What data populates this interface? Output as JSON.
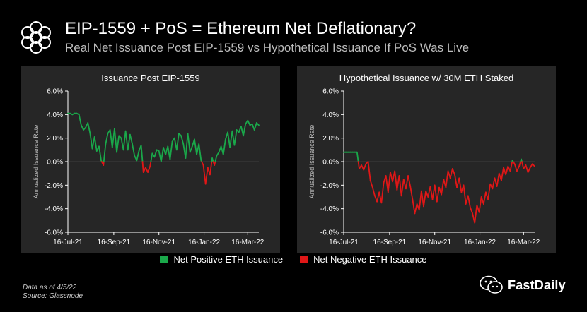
{
  "header": {
    "title": "EIP-1559 + PoS = Ethereum Net Deflationary?",
    "subtitle": "Real Net Issuance Post EIP-1559 vs Hypothetical Issuance If PoS Was Live"
  },
  "legend": {
    "positive": "Net Positive ETH Issuance",
    "negative": "Net Negative ETH Issuance"
  },
  "colors": {
    "positive": "#1aa84a",
    "negative": "#e01717",
    "background": "#000000",
    "panel": "#262626",
    "axis": "#ffffff"
  },
  "footnotes": {
    "date": "Data as of 4/5/22",
    "source": "Source: Glassnode"
  },
  "watermark": {
    "brand": "FastDaily"
  },
  "chart_data": [
    {
      "type": "line",
      "title": "Issuance Post EIP-1559",
      "xlabel": "",
      "ylabel": "Annualized Issuance Rate",
      "ylim": [
        -6,
        6
      ],
      "y_ticks": [
        "6.0%",
        "4.0%",
        "2.0%",
        "0.0%",
        "-2.0%",
        "-4.0%",
        "-6.0%"
      ],
      "y_tick_values": [
        6,
        4,
        2,
        0,
        -2,
        -4,
        -6
      ],
      "x_range": [
        0,
        258
      ],
      "x_ticks": [
        "16-Jul-21",
        "16-Sep-21",
        "16-Nov-21",
        "16-Jan-22",
        "16-Mar-22"
      ],
      "x_tick_values": [
        0,
        62,
        123,
        184,
        243
      ],
      "series": [
        {
          "name": "Net Issuance",
          "x": [
            0,
            3,
            6,
            9,
            12,
            15,
            18,
            21,
            24,
            27,
            30,
            33,
            36,
            39,
            42,
            45,
            48,
            51,
            54,
            57,
            60,
            63,
            66,
            69,
            72,
            75,
            78,
            81,
            84,
            87,
            90,
            93,
            96,
            99,
            102,
            105,
            108,
            111,
            114,
            117,
            120,
            123,
            126,
            129,
            132,
            135,
            138,
            141,
            144,
            147,
            150,
            153,
            156,
            159,
            162,
            165,
            168,
            171,
            174,
            177,
            180,
            183,
            186,
            189,
            192,
            195,
            198,
            201,
            204,
            207,
            210,
            213,
            216,
            219,
            222,
            225,
            228,
            231,
            234,
            237,
            240,
            243,
            246,
            249,
            252,
            255,
            258
          ],
          "values": [
            4.1,
            4.1,
            4.0,
            4.1,
            4.1,
            4.0,
            3.1,
            2.7,
            2.9,
            3.3,
            2.4,
            1.1,
            2.1,
            0.9,
            1.3,
            0.1,
            -0.3,
            1.5,
            2.4,
            2.7,
            1.2,
            2.8,
            0.8,
            2.2,
            2.0,
            1.0,
            2.6,
            1.0,
            2.3,
            1.5,
            0.5,
            0.1,
            0.9,
            1.4,
            -0.9,
            -0.5,
            -0.9,
            -0.4,
            0.7,
            0.4,
            1.0,
            0.9,
            0.0,
            1.2,
            0.6,
            1.3,
            0.2,
            1.7,
            2.0,
            1.0,
            2.4,
            2.2,
            1.5,
            0.3,
            2.4,
            0.8,
            1.3,
            1.9,
            0.6,
            1.5,
            0.1,
            -0.3,
            -1.9,
            -0.5,
            -1.1,
            0.3,
            -0.3,
            0.5,
            0.8,
            1.3,
            0.6,
            1.9,
            2.5,
            1.2,
            2.6,
            1.4,
            2.7,
            2.5,
            3.0,
            2.2,
            3.2,
            3.5,
            3.1,
            3.2,
            2.7,
            3.3,
            3.1
          ]
        }
      ]
    },
    {
      "type": "line",
      "title": "Hypothetical Issuance w/ 30M ETH Staked",
      "xlabel": "",
      "ylabel": "Annualized Issuance Rate",
      "ylim": [
        -6,
        6
      ],
      "y_ticks": [
        "6.0%",
        "4.0%",
        "2.0%",
        "0.0%",
        "-2.0%",
        "-4.0%",
        "-6.0%"
      ],
      "y_tick_values": [
        6,
        4,
        2,
        0,
        -2,
        -4,
        -6
      ],
      "x_range": [
        0,
        258
      ],
      "x_ticks": [
        "16-Jul-21",
        "16-Sep-21",
        "16-Nov-21",
        "16-Jan-22",
        "16-Mar-22"
      ],
      "x_tick_values": [
        0,
        62,
        123,
        184,
        243
      ],
      "series": [
        {
          "name": "Hypothetical Net Issuance",
          "x": [
            0,
            3,
            6,
            9,
            12,
            15,
            18,
            21,
            24,
            27,
            30,
            33,
            36,
            39,
            42,
            45,
            48,
            51,
            54,
            57,
            60,
            63,
            66,
            69,
            72,
            75,
            78,
            81,
            84,
            87,
            90,
            93,
            96,
            99,
            102,
            105,
            108,
            111,
            114,
            117,
            120,
            123,
            126,
            129,
            132,
            135,
            138,
            141,
            144,
            147,
            150,
            153,
            156,
            159,
            162,
            165,
            168,
            171,
            174,
            177,
            180,
            183,
            186,
            189,
            192,
            195,
            198,
            201,
            204,
            207,
            210,
            213,
            216,
            219,
            222,
            225,
            228,
            231,
            234,
            237,
            240,
            243,
            246,
            249,
            252,
            255,
            258
          ],
          "values": [
            0.8,
            0.8,
            0.8,
            0.8,
            0.8,
            0.8,
            0.8,
            -0.6,
            -0.3,
            -0.7,
            -0.2,
            0.0,
            -1.6,
            -2.2,
            -2.9,
            -3.4,
            -2.6,
            -3.5,
            -1.8,
            -1.2,
            -2.6,
            -0.9,
            -1.7,
            -0.8,
            -2.4,
            -1.2,
            -2.9,
            -1.5,
            -2.3,
            -1.2,
            -2.1,
            -3.2,
            -4.4,
            -3.6,
            -4.1,
            -2.5,
            -3.8,
            -2.5,
            -3.0,
            -2.1,
            -3.2,
            -2.0,
            -3.4,
            -2.2,
            -2.8,
            -1.5,
            -2.2,
            -0.8,
            -1.4,
            -0.6,
            -1.1,
            -2.2,
            -1.4,
            -2.6,
            -2.0,
            -3.6,
            -2.9,
            -3.9,
            -4.4,
            -5.2,
            -3.7,
            -4.3,
            -3.0,
            -3.6,
            -2.6,
            -3.2,
            -1.9,
            -2.3,
            -1.4,
            -2.1,
            -1.0,
            -1.6,
            -0.5,
            -1.1,
            -0.4,
            -0.8,
            0.1,
            -0.2,
            -0.8,
            -0.4,
            0.2,
            -0.6,
            -0.3,
            -0.9,
            -0.5,
            -0.2,
            -0.4
          ]
        }
      ]
    }
  ]
}
